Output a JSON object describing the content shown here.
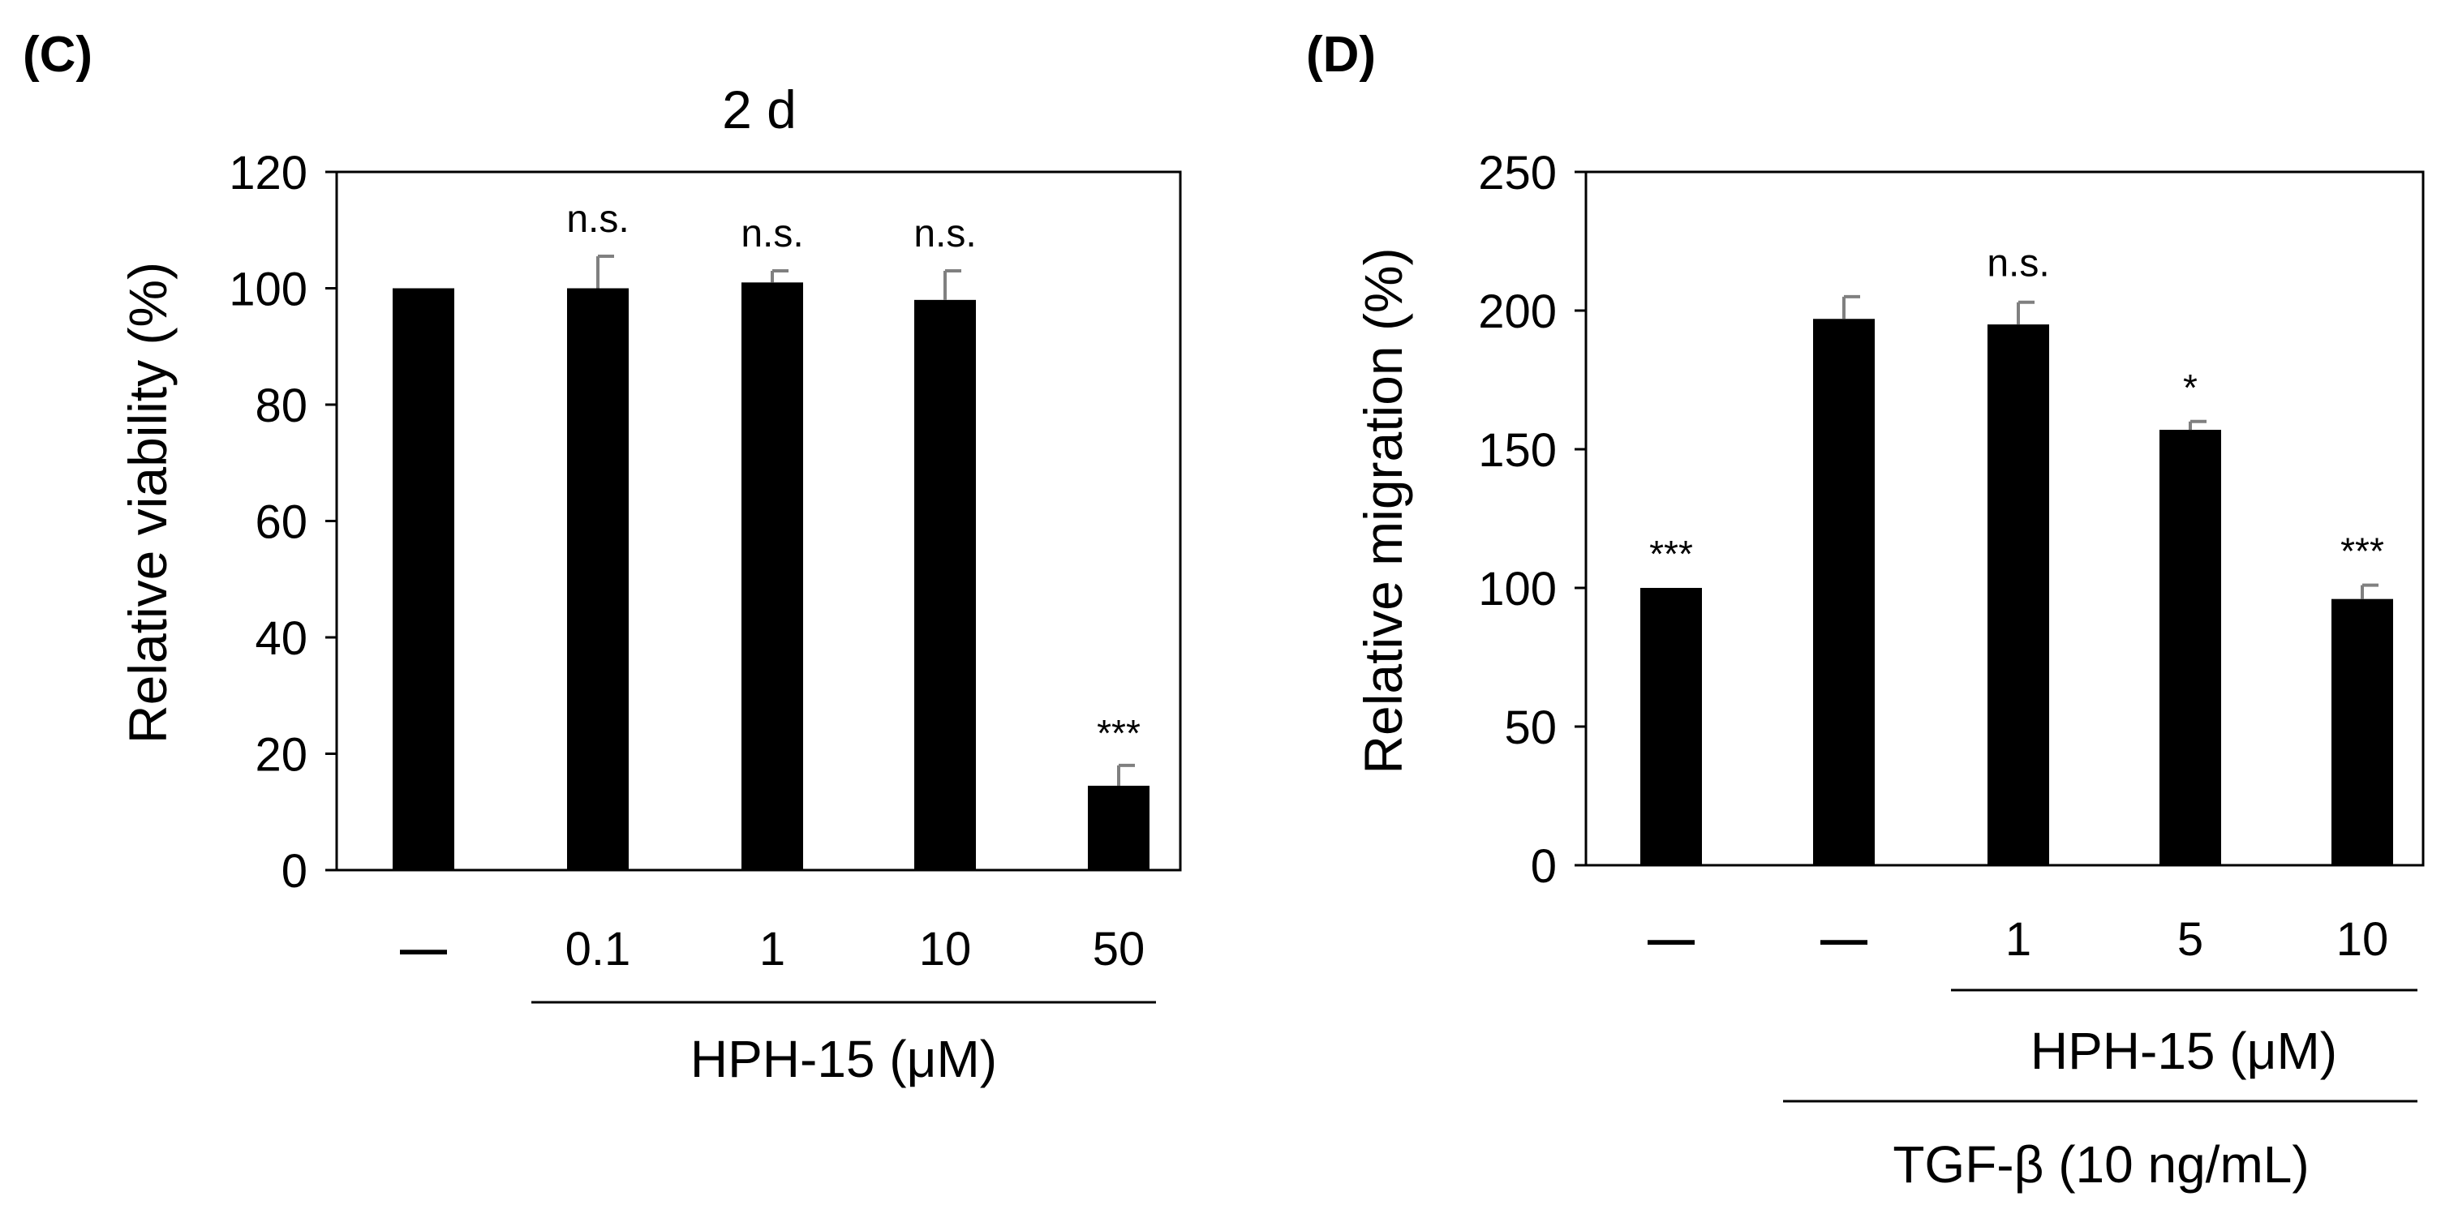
{
  "colors": {
    "bar": "#000000",
    "error_bar": "#808080",
    "axis": "#000000",
    "background": "#ffffff"
  },
  "chart_data": [
    {
      "panel": "(C)",
      "type": "bar",
      "title": "2 d",
      "ylabel": "Relative viability (%)",
      "ylim": [
        0,
        120
      ],
      "yticks": [
        0,
        20,
        40,
        60,
        80,
        100,
        120
      ],
      "categories": [
        "—",
        "0.1",
        "1",
        "10",
        "50"
      ],
      "values": [
        100,
        100,
        101,
        98,
        14.5
      ],
      "errors": [
        0,
        5.5,
        2,
        5,
        3.5
      ],
      "significance": [
        "",
        "n.s.",
        "n.s.",
        "n.s.",
        "***"
      ],
      "group_labels": [
        {
          "text": "HPH-15 (μM)",
          "from": 1,
          "to": 4
        }
      ]
    },
    {
      "panel": "(D)",
      "type": "bar",
      "title": "",
      "ylabel": "Relative migration (%)",
      "ylim": [
        0,
        250
      ],
      "yticks": [
        0,
        50,
        100,
        150,
        200,
        250
      ],
      "categories": [
        "—",
        "—",
        "1",
        "5",
        "10"
      ],
      "values": [
        100,
        197,
        195,
        157,
        96
      ],
      "errors": [
        0,
        8,
        8,
        3,
        5
      ],
      "significance": [
        "***",
        "",
        "n.s.",
        "*",
        "***"
      ],
      "group_labels": [
        {
          "text": "HPH-15 (μM)",
          "from": 2,
          "to": 4
        },
        {
          "text": "TGF-β (10 ng/mL)",
          "from": 1,
          "to": 4
        }
      ]
    }
  ]
}
